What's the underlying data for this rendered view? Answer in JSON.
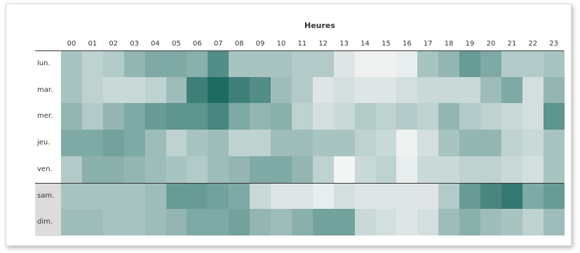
{
  "chart_data": {
    "type": "heatmap",
    "title": "Heures",
    "x_categories": [
      "00",
      "01",
      "02",
      "03",
      "04",
      "05",
      "06",
      "07",
      "08",
      "09",
      "10",
      "11",
      "12",
      "13",
      "14",
      "15",
      "16",
      "17",
      "18",
      "19",
      "20",
      "21",
      "22",
      "23"
    ],
    "y_categories": [
      "lun.",
      "mar.",
      "mer.",
      "jeu.",
      "ven.",
      "sam.",
      "dim."
    ],
    "color_scale": {
      "low": "#f3f4f4",
      "high": "#1e6b62"
    },
    "values": [
      [
        0.35,
        0.25,
        0.3,
        0.45,
        0.55,
        0.55,
        0.5,
        0.75,
        0.35,
        0.35,
        0.35,
        0.3,
        0.3,
        0.1,
        0.02,
        0.02,
        0.05,
        0.35,
        0.45,
        0.65,
        0.55,
        0.3,
        0.3,
        0.35
      ],
      [
        0.35,
        0.25,
        0.2,
        0.2,
        0.25,
        0.4,
        0.85,
        1.0,
        0.85,
        0.75,
        0.4,
        0.3,
        0.1,
        0.15,
        0.1,
        0.1,
        0.15,
        0.2,
        0.2,
        0.2,
        0.4,
        0.55,
        0.15,
        0.45
      ],
      [
        0.45,
        0.3,
        0.45,
        0.55,
        0.65,
        0.7,
        0.7,
        0.8,
        0.55,
        0.45,
        0.5,
        0.25,
        0.15,
        0.2,
        0.3,
        0.25,
        0.3,
        0.25,
        0.45,
        0.3,
        0.25,
        0.2,
        0.15,
        0.7
      ],
      [
        0.55,
        0.55,
        0.6,
        0.55,
        0.4,
        0.25,
        0.35,
        0.4,
        0.25,
        0.25,
        0.4,
        0.4,
        0.35,
        0.35,
        0.25,
        0.2,
        0.02,
        0.15,
        0.35,
        0.45,
        0.45,
        0.25,
        0.2,
        0.35
      ],
      [
        0.3,
        0.5,
        0.5,
        0.45,
        0.4,
        0.35,
        0.3,
        0.4,
        0.45,
        0.55,
        0.55,
        0.45,
        0.25,
        0.0,
        0.2,
        0.25,
        0.05,
        0.2,
        0.2,
        0.25,
        0.25,
        0.2,
        0.15,
        0.35
      ],
      [
        0.35,
        0.35,
        0.35,
        0.35,
        0.4,
        0.65,
        0.65,
        0.6,
        0.55,
        0.2,
        0.1,
        0.1,
        0.05,
        0.15,
        0.1,
        0.1,
        0.1,
        0.1,
        0.3,
        0.65,
        0.8,
        0.9,
        0.55,
        0.65
      ],
      [
        0.4,
        0.4,
        0.35,
        0.35,
        0.4,
        0.45,
        0.55,
        0.55,
        0.6,
        0.45,
        0.4,
        0.5,
        0.6,
        0.6,
        0.2,
        0.15,
        0.1,
        0.15,
        0.4,
        0.5,
        0.4,
        0.35,
        0.25,
        0.4
      ]
    ],
    "weekend_rows": [
      "sam.",
      "dim."
    ]
  }
}
